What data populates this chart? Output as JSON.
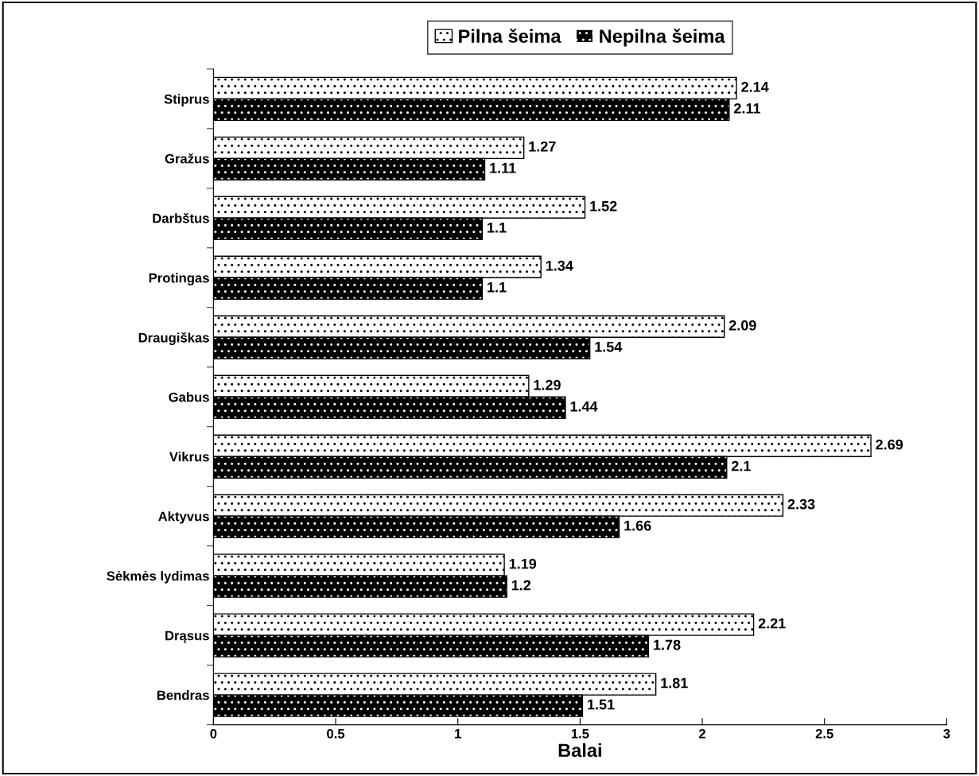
{
  "chart_data": {
    "type": "bar",
    "orientation": "horizontal",
    "xlabel": "Balai",
    "categories": [
      "Stiprus",
      "Gražus",
      "Darbštus",
      "Protingas",
      "Draugiškas",
      "Gabus",
      "Vikrus",
      "Aktyvus",
      "Sėkmės lydimas",
      "Drąsus",
      "Bendras"
    ],
    "series": [
      {
        "name": "Pilna šeima",
        "color": "#ffffff",
        "values": [
          2.14,
          1.27,
          1.52,
          1.34,
          2.09,
          1.29,
          2.69,
          2.33,
          1.19,
          2.21,
          1.81
        ]
      },
      {
        "name": "Nepilna šeima",
        "color": "#000000",
        "values": [
          2.11,
          1.11,
          1.1,
          1.1,
          1.54,
          1.44,
          2.1,
          1.66,
          1.2,
          1.78,
          1.51
        ]
      }
    ],
    "xlim": [
      0,
      3
    ],
    "xticks": [
      0,
      0.5,
      1,
      1.5,
      2,
      2.5,
      3
    ],
    "data_labels": true,
    "legend": "top",
    "grid": false
  }
}
